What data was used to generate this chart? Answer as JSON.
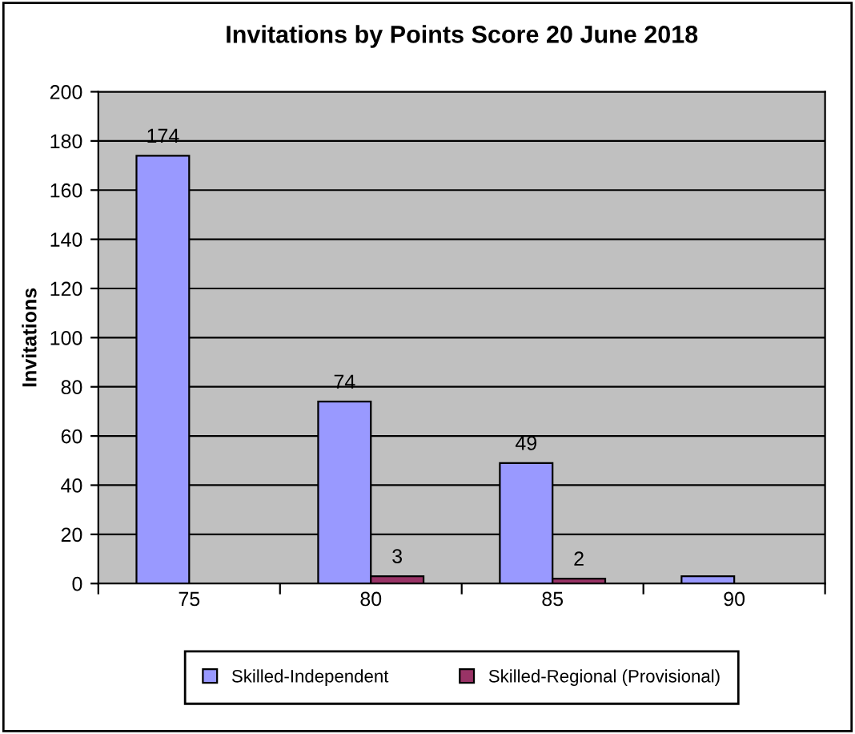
{
  "chart_data": {
    "type": "bar",
    "title": "Invitations by Points Score 20 June 2018",
    "ylabel": "Invitations",
    "categories": [
      "75",
      "80",
      "85",
      "90"
    ],
    "series": [
      {
        "name": "Skilled-Independent",
        "color": "#9999ff",
        "values": [
          174,
          74,
          49,
          3
        ],
        "value_labels": [
          "174",
          "74",
          "49",
          null
        ]
      },
      {
        "name": "Skilled-Regional (Provisional)",
        "color": "#993366",
        "values": [
          null,
          3,
          2,
          null
        ],
        "value_labels": [
          null,
          "3",
          "2",
          null
        ]
      }
    ],
    "ylim": [
      0,
      200
    ],
    "yticks": [
      0,
      20,
      40,
      60,
      80,
      100,
      120,
      140,
      160,
      180,
      200
    ],
    "grid": "y",
    "legend": "bottom"
  }
}
